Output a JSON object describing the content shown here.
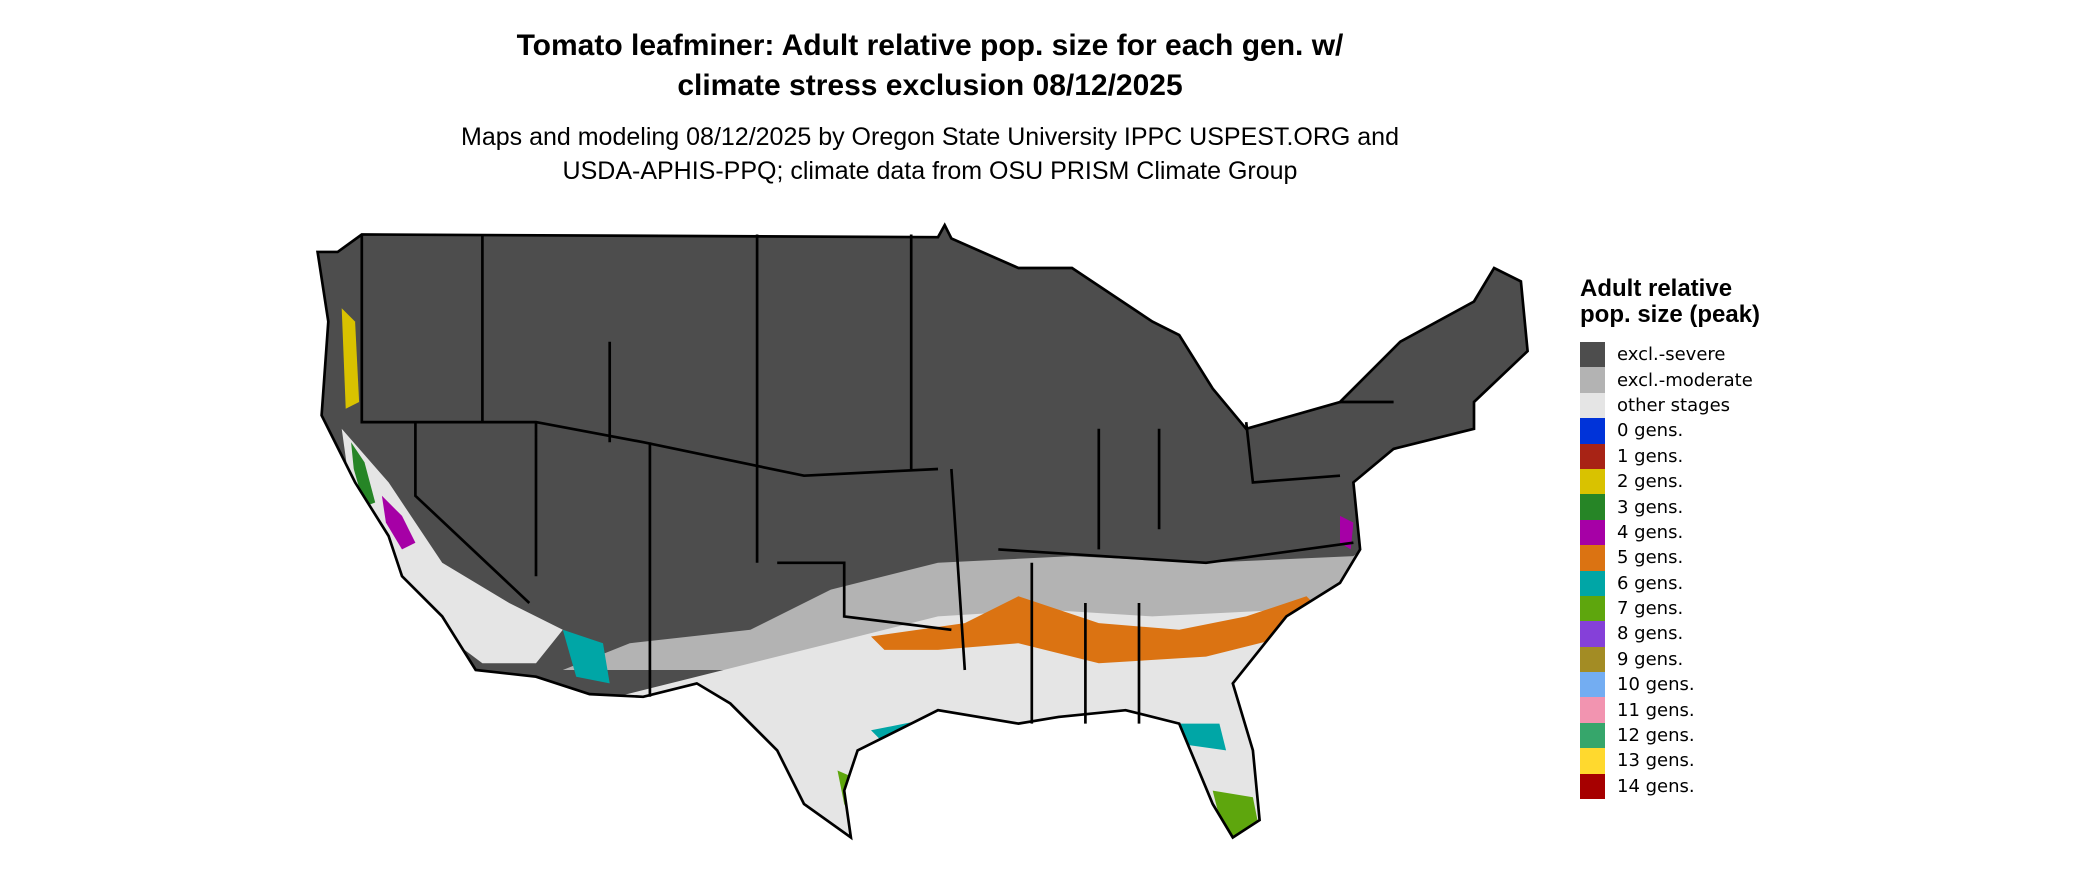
{
  "title_line1": "Tomato leafminer: Adult relative pop. size for each gen. w/",
  "title_line2": "climate stress exclusion 08/12/2025",
  "subtitle_line1": "Maps and modeling 08/12/2025 by Oregon State University IPPC USPEST.ORG and",
  "subtitle_line2": "USDA-APHIS-PPQ; climate data from OSU PRISM Climate Group",
  "legend": {
    "title": "Adult relative pop. size (peak)",
    "items": [
      {
        "label": "excl.-severe",
        "color": "#4d4d4d"
      },
      {
        "label": "excl.-moderate",
        "color": "#b3b3b3"
      },
      {
        "label": "other stages",
        "color": "#e5e5e5"
      },
      {
        "label": "0 gens.",
        "color": "#0033d9"
      },
      {
        "label": "1 gens.",
        "color": "#a82315"
      },
      {
        "label": "2 gens.",
        "color": "#d9c200"
      },
      {
        "label": "3 gens.",
        "color": "#268526"
      },
      {
        "label": "4 gens.",
        "color": "#a600a6"
      },
      {
        "label": "5 gens.",
        "color": "#db7312"
      },
      {
        "label": "6 gens.",
        "color": "#00a6a6"
      },
      {
        "label": "7 gens.",
        "color": "#5ea60d"
      },
      {
        "label": "8 gens.",
        "color": "#8540d9"
      },
      {
        "label": "9 gens.",
        "color": "#a38c24"
      },
      {
        "label": "10 gens.",
        "color": "#73adf2"
      },
      {
        "label": "11 gens.",
        "color": "#f294b0"
      },
      {
        "label": "12 gens.",
        "color": "#36a66b"
      },
      {
        "label": "13 gens.",
        "color": "#ffd92e"
      },
      {
        "label": "14 gens.",
        "color": "#a60000"
      }
    ]
  }
}
